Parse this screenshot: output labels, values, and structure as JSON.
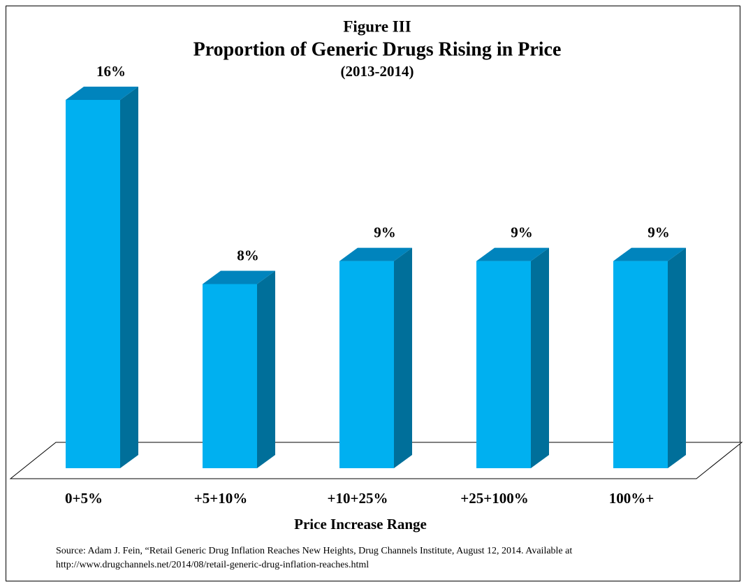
{
  "chart_data": {
    "type": "bar3d",
    "title": "Figure III",
    "subtitle": "Proportion of Generic Drugs Rising in Price",
    "period": "(2013-2014)",
    "x_label": "Price Increase Range",
    "categories": [
      "0+5%",
      "+5+10%",
      "+10+25%",
      "+25+100%",
      "100%+"
    ],
    "values": [
      16,
      8,
      9,
      9,
      9
    ],
    "value_labels": [
      "16%",
      "8%",
      "9%",
      "9%",
      "9%"
    ],
    "color": "#00b0f0",
    "source": [
      "Source: Adam J. Fein, “Retail Generic Drug Inflation Reaches New Heights, Drug Channels Institute, August 12, 2014. Available at",
      "http://www.drugchannels.net/2014/08/retail-generic-drug-inflation-reaches.html"
    ]
  }
}
